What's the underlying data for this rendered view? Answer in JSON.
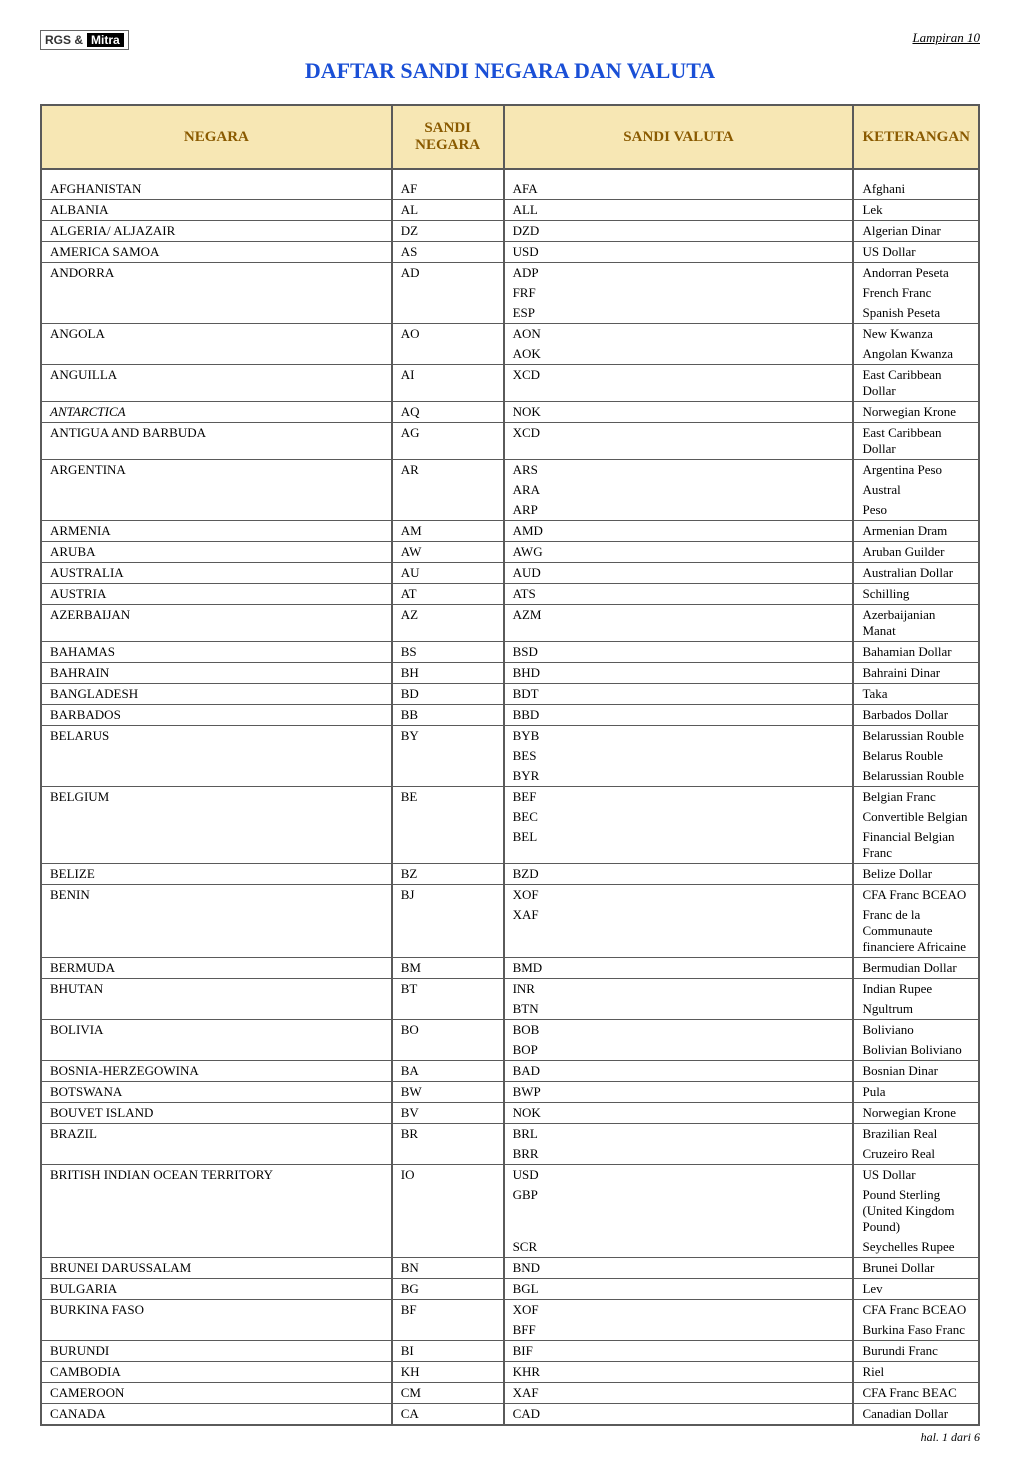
{
  "header": {
    "logo_rgs": "RGS &",
    "logo_mitra": "Mitra",
    "title": "DAFTAR SANDI NEGARA DAN VALUTA",
    "lampiran": "Lampiran 10"
  },
  "columns": {
    "negara": "NEGARA",
    "sandi_negara": "SANDI NEGARA",
    "sandi_valuta": "SANDI VALUTA",
    "keterangan": "KETERANGAN"
  },
  "rows": [
    {
      "negara": "AFGHANISTAN",
      "sn": "AF",
      "valutas": [
        [
          "AFA",
          "Afghani"
        ]
      ]
    },
    {
      "negara": "ALBANIA",
      "sn": "AL",
      "valutas": [
        [
          "ALL",
          "Lek"
        ]
      ]
    },
    {
      "negara": "ALGERIA/ ALJAZAIR",
      "sn": "DZ",
      "valutas": [
        [
          "DZD",
          "Algerian Dinar"
        ]
      ]
    },
    {
      "negara": "AMERICA SAMOA",
      "sn": "AS",
      "valutas": [
        [
          "USD",
          "US Dollar"
        ]
      ]
    },
    {
      "negara": "ANDORRA",
      "sn": "AD",
      "valutas": [
        [
          "ADP",
          "Andorran Peseta"
        ],
        [
          "FRF",
          "French Franc"
        ],
        [
          "ESP",
          "Spanish Peseta"
        ]
      ]
    },
    {
      "negara": "ANGOLA",
      "sn": "AO",
      "valutas": [
        [
          "AON",
          "New Kwanza"
        ],
        [
          "AOK",
          "Angolan Kwanza"
        ]
      ]
    },
    {
      "negara": "ANGUILLA",
      "sn": "AI",
      "valutas": [
        [
          "XCD",
          "East Caribbean Dollar"
        ]
      ]
    },
    {
      "negara": "ANTARCTICA",
      "sn": "AQ",
      "italic": true,
      "valutas": [
        [
          "NOK",
          "Norwegian Krone"
        ]
      ]
    },
    {
      "negara": "ANTIGUA AND BARBUDA",
      "sn": "AG",
      "valutas": [
        [
          "XCD",
          "East Caribbean Dollar"
        ]
      ]
    },
    {
      "negara": "ARGENTINA",
      "sn": "AR",
      "valutas": [
        [
          "ARS",
          "Argentina Peso"
        ],
        [
          "ARA",
          "Austral"
        ],
        [
          "ARP",
          "Peso"
        ]
      ]
    },
    {
      "negara": "ARMENIA",
      "sn": "AM",
      "valutas": [
        [
          "AMD",
          "Armenian Dram"
        ]
      ]
    },
    {
      "negara": "ARUBA",
      "sn": "AW",
      "valutas": [
        [
          "AWG",
          "Aruban Guilder"
        ]
      ]
    },
    {
      "negara": "AUSTRALIA",
      "sn": "AU",
      "valutas": [
        [
          "AUD",
          "Australian Dollar"
        ]
      ]
    },
    {
      "negara": "AUSTRIA",
      "sn": "AT",
      "valutas": [
        [
          "ATS",
          "Schilling"
        ]
      ]
    },
    {
      "negara": "AZERBAIJAN",
      "sn": "AZ",
      "valutas": [
        [
          "AZM",
          "Azerbaijanian Manat"
        ]
      ]
    },
    {
      "negara": "BAHAMAS",
      "sn": "BS",
      "valutas": [
        [
          "BSD",
          "Bahamian Dollar"
        ]
      ]
    },
    {
      "negara": "BAHRAIN",
      "sn": "BH",
      "valutas": [
        [
          "BHD",
          "Bahraini Dinar"
        ]
      ]
    },
    {
      "negara": "BANGLADESH",
      "sn": "BD",
      "valutas": [
        [
          "BDT",
          "Taka"
        ]
      ]
    },
    {
      "negara": "BARBADOS",
      "sn": "BB",
      "valutas": [
        [
          "BBD",
          "Barbados Dollar"
        ]
      ]
    },
    {
      "negara": "BELARUS",
      "sn": "BY",
      "valutas": [
        [
          "BYB",
          "Belarussian Rouble"
        ],
        [
          "BES",
          "Belarus Rouble"
        ],
        [
          "BYR",
          "Belarussian Rouble"
        ]
      ]
    },
    {
      "negara": "BELGIUM",
      "sn": "BE",
      "valutas": [
        [
          "BEF",
          "Belgian Franc"
        ],
        [
          "BEC",
          "Convertible Belgian"
        ],
        [
          "BEL",
          "Financial Belgian Franc"
        ]
      ]
    },
    {
      "negara": "BELIZE",
      "sn": "BZ",
      "valutas": [
        [
          "BZD",
          "Belize Dollar"
        ]
      ]
    },
    {
      "negara": "BENIN",
      "sn": "BJ",
      "valutas": [
        [
          "XOF",
          "CFA Franc BCEAO"
        ],
        [
          "XAF",
          "Franc de la Communaute financiere Africaine"
        ]
      ]
    },
    {
      "negara": "BERMUDA",
      "sn": "BM",
      "valutas": [
        [
          "BMD",
          "Bermudian Dollar"
        ]
      ]
    },
    {
      "negara": "BHUTAN",
      "sn": "BT",
      "valutas": [
        [
          "INR",
          "Indian Rupee"
        ],
        [
          "BTN",
          "Ngultrum"
        ]
      ]
    },
    {
      "negara": "BOLIVIA",
      "sn": "BO",
      "valutas": [
        [
          "BOB",
          "Boliviano"
        ],
        [
          "BOP",
          "Bolivian Boliviano"
        ]
      ]
    },
    {
      "negara": "BOSNIA-HERZEGOWINA",
      "sn": "BA",
      "valutas": [
        [
          "BAD",
          "Bosnian Dinar"
        ]
      ]
    },
    {
      "negara": "BOTSWANA",
      "sn": "BW",
      "valutas": [
        [
          "BWP",
          "Pula"
        ]
      ]
    },
    {
      "negara": "BOUVET ISLAND",
      "sn": "BV",
      "valutas": [
        [
          "NOK",
          "Norwegian Krone"
        ]
      ]
    },
    {
      "negara": "BRAZIL",
      "sn": "BR",
      "valutas": [
        [
          "BRL",
          "Brazilian Real"
        ],
        [
          "BRR",
          "Cruzeiro Real"
        ]
      ]
    },
    {
      "negara": "BRITISH INDIAN OCEAN TERRITORY",
      "sn": "IO",
      "valutas": [
        [
          "USD",
          "US Dollar"
        ],
        [
          "GBP",
          "Pound Sterling (United Kingdom Pound)"
        ],
        [
          "SCR",
          "Seychelles Rupee"
        ]
      ]
    },
    {
      "negara": "BRUNEI DARUSSALAM",
      "sn": "BN",
      "valutas": [
        [
          "BND",
          "Brunei Dollar"
        ]
      ]
    },
    {
      "negara": "BULGARIA",
      "sn": "BG",
      "valutas": [
        [
          "BGL",
          "Lev"
        ]
      ]
    },
    {
      "negara": "BURKINA FASO",
      "sn": "BF",
      "valutas": [
        [
          "XOF",
          "CFA Franc BCEAO"
        ],
        [
          "BFF",
          "Burkina Faso Franc"
        ]
      ]
    },
    {
      "negara": "BURUNDI",
      "sn": "BI",
      "valutas": [
        [
          "BIF",
          "Burundi Franc"
        ]
      ]
    },
    {
      "negara": "CAMBODIA",
      "sn": "KH",
      "valutas": [
        [
          "KHR",
          "Riel"
        ]
      ]
    },
    {
      "negara": "CAMEROON",
      "sn": "CM",
      "valutas": [
        [
          "XAF",
          "CFA Franc BEAC"
        ]
      ]
    },
    {
      "negara": "CANADA",
      "sn": "CA",
      "valutas": [
        [
          "CAD",
          "Canadian Dollar"
        ]
      ]
    }
  ],
  "footer": "hal.  1 dari 6"
}
